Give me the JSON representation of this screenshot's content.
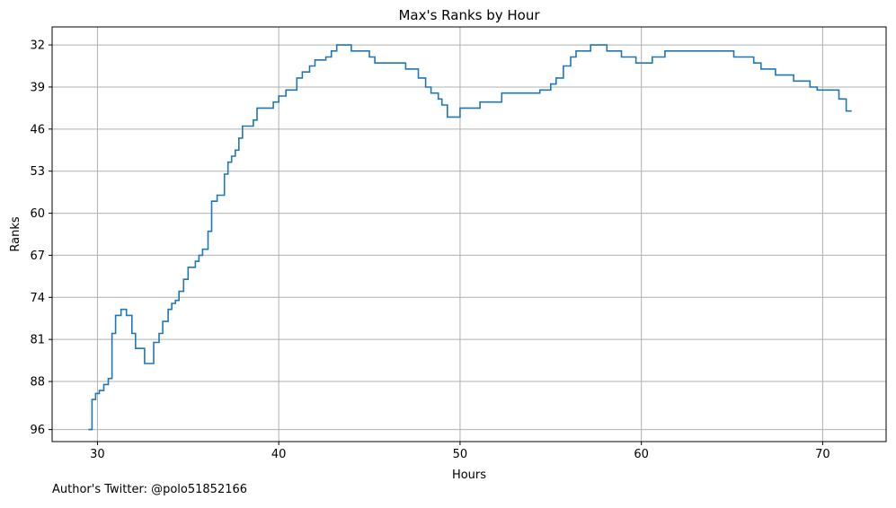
{
  "footer": {
    "text": "Author's Twitter: @polo51852166"
  },
  "chart_data": {
    "type": "line",
    "drawstyle": "step",
    "title": "Max's Ranks by Hour",
    "xlabel": "Hours",
    "ylabel": "Ranks",
    "xlim": [
      27.5,
      73.5
    ],
    "ylim": [
      98.0,
      29.0
    ],
    "y_inverted": true,
    "xticks": [
      30,
      40,
      50,
      60,
      70
    ],
    "yticks": [
      32,
      39,
      46,
      53,
      60,
      67,
      74,
      81,
      88,
      96
    ],
    "grid": true,
    "legend": "none",
    "line_color": "#1f77b4",
    "series": [
      {
        "x": [
          29.5,
          29.7,
          29.9,
          30.1,
          30.35,
          30.6,
          30.8,
          31.0,
          31.3,
          31.6,
          31.9,
          32.1,
          32.6,
          33.1,
          33.4,
          33.6,
          33.9,
          34.1,
          34.3,
          34.5,
          34.75,
          35.0,
          35.4,
          35.6,
          35.8,
          36.1,
          36.3,
          36.6,
          37.0,
          37.2,
          37.4,
          37.6,
          37.8,
          38.0,
          38.2,
          38.6,
          38.8,
          39.5,
          39.7,
          40.0,
          40.4,
          41.0,
          41.3,
          41.7,
          42.0,
          42.6,
          42.9,
          43.2,
          43.6,
          44.0,
          44.5,
          45.0,
          45.3,
          46.6,
          47.0,
          47.7,
          48.1,
          48.4,
          48.8,
          49.0,
          49.3,
          50.0,
          51.1,
          52.3,
          54.4,
          55.0,
          55.3,
          55.7,
          56.1,
          56.4,
          57.2,
          58.1,
          58.9,
          59.7,
          60.6,
          61.3,
          62.5,
          65.1,
          66.2,
          66.6,
          67.4,
          68.4,
          69.3,
          69.7,
          70.9,
          71.3,
          71.6
        ],
        "y": [
          96,
          91,
          90,
          89.5,
          88.5,
          87.5,
          80,
          77,
          76,
          77,
          80,
          82.5,
          85,
          81.5,
          80,
          78,
          76,
          75,
          74.5,
          73,
          71,
          69,
          68,
          67,
          66,
          63,
          58,
          57,
          53.5,
          51.5,
          50.5,
          49.5,
          47.5,
          45.5,
          45.5,
          44.5,
          42.5,
          42.5,
          41.5,
          40.5,
          39.5,
          37.5,
          36.5,
          35.5,
          34.5,
          34.0,
          33.0,
          32.0,
          32.0,
          33.0,
          33.0,
          34.0,
          35.0,
          35.0,
          36.0,
          37.5,
          39.0,
          40.0,
          41.0,
          42.0,
          44.0,
          42.5,
          41.5,
          40.0,
          39.5,
          38.5,
          37.5,
          35.5,
          34.0,
          33.0,
          32.0,
          33.0,
          34.0,
          35.0,
          34.0,
          33.0,
          33.0,
          34.0,
          35.0,
          36.0,
          37.0,
          38.0,
          39.0,
          39.5,
          41.0,
          43.0,
          43.0
        ]
      }
    ]
  }
}
